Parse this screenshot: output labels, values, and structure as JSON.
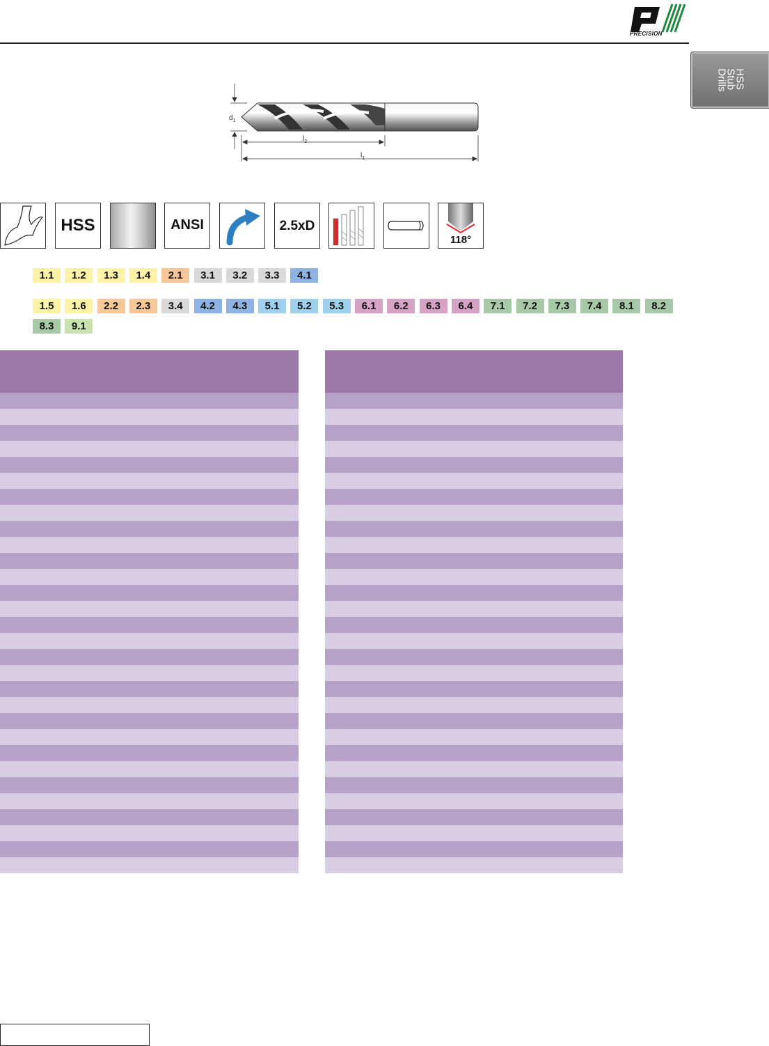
{
  "header": {
    "brand": "PRECISION",
    "side_tab_label": "HSS\nStub\nDrills"
  },
  "diagram": {
    "labels": {
      "diameter": "d",
      "diameter_sub": "1",
      "flute_length": "l",
      "flute_length_sub": "2",
      "overall_length": "l",
      "overall_length_sub": "1"
    }
  },
  "icons": [
    {
      "name": "flute-profile-icon",
      "label": ""
    },
    {
      "name": "hss-icon",
      "label": "HSS"
    },
    {
      "name": "bright-finish-icon",
      "label": ""
    },
    {
      "name": "ansi-icon",
      "label": "ANSI"
    },
    {
      "name": "right-hand-spiral-icon",
      "label": ""
    },
    {
      "name": "drilling-depth-icon",
      "label": "2.5xD"
    },
    {
      "name": "drill-lengths-icon",
      "label": ""
    },
    {
      "name": "straight-shank-icon",
      "label": ""
    },
    {
      "name": "point-angle-icon",
      "label": "118°"
    }
  ],
  "material_groups": {
    "colors": {
      "yellow": "#fdf3a8",
      "orange": "#f7c79a",
      "grey": "#d9d9d9",
      "blue": "#8fb4e3",
      "lightblue": "#9fd0ee",
      "pink": "#d6a2c6",
      "green": "#a7c9a7",
      "lightgreen": "#c9e2b0"
    },
    "row1": [
      {
        "code": "1.1",
        "color": "#fdf3a8"
      },
      {
        "code": "1.2",
        "color": "#fdf3a8"
      },
      {
        "code": "1.3",
        "color": "#fdf3a8"
      },
      {
        "code": "1.4",
        "color": "#fdf3a8"
      },
      {
        "code": "2.1",
        "color": "#f7c79a"
      },
      {
        "code": "3.1",
        "color": "#d9d9d9"
      },
      {
        "code": "3.2",
        "color": "#d9d9d9"
      },
      {
        "code": "3.3",
        "color": "#d9d9d9"
      },
      {
        "code": "4.1",
        "color": "#8fb4e3"
      }
    ],
    "row2": [
      {
        "code": "1.5",
        "color": "#fdf3a8"
      },
      {
        "code": "1.6",
        "color": "#fdf3a8"
      },
      {
        "code": "2.2",
        "color": "#f7c79a"
      },
      {
        "code": "2.3",
        "color": "#f7c79a"
      },
      {
        "code": "3.4",
        "color": "#d9d9d9"
      },
      {
        "code": "4.2",
        "color": "#8fb4e3"
      },
      {
        "code": "4.3",
        "color": "#8fb4e3"
      },
      {
        "code": "5.1",
        "color": "#9fd0ee"
      },
      {
        "code": "5.2",
        "color": "#9fd0ee"
      },
      {
        "code": "5.3",
        "color": "#9fd0ee"
      },
      {
        "code": "6.1",
        "color": "#d6a2c6"
      },
      {
        "code": "6.2",
        "color": "#d6a2c6"
      },
      {
        "code": "6.3",
        "color": "#d6a2c6"
      },
      {
        "code": "6.4",
        "color": "#d6a2c6"
      },
      {
        "code": "7.1",
        "color": "#a7c9a7"
      },
      {
        "code": "7.2",
        "color": "#a7c9a7"
      },
      {
        "code": "7.3",
        "color": "#a7c9a7"
      },
      {
        "code": "7.4",
        "color": "#a7c9a7"
      },
      {
        "code": "8.1",
        "color": "#a7c9a7"
      },
      {
        "code": "8.2",
        "color": "#a7c9a7"
      },
      {
        "code": "8.3",
        "color": "#a7c9a7"
      },
      {
        "code": "9.1",
        "color": "#c9e2b0"
      }
    ]
  },
  "tables": {
    "header_color": "#9c78a8",
    "row_color_dark": "#b7a2c7",
    "row_color_light": "#d8cde2",
    "row_count": 30
  }
}
